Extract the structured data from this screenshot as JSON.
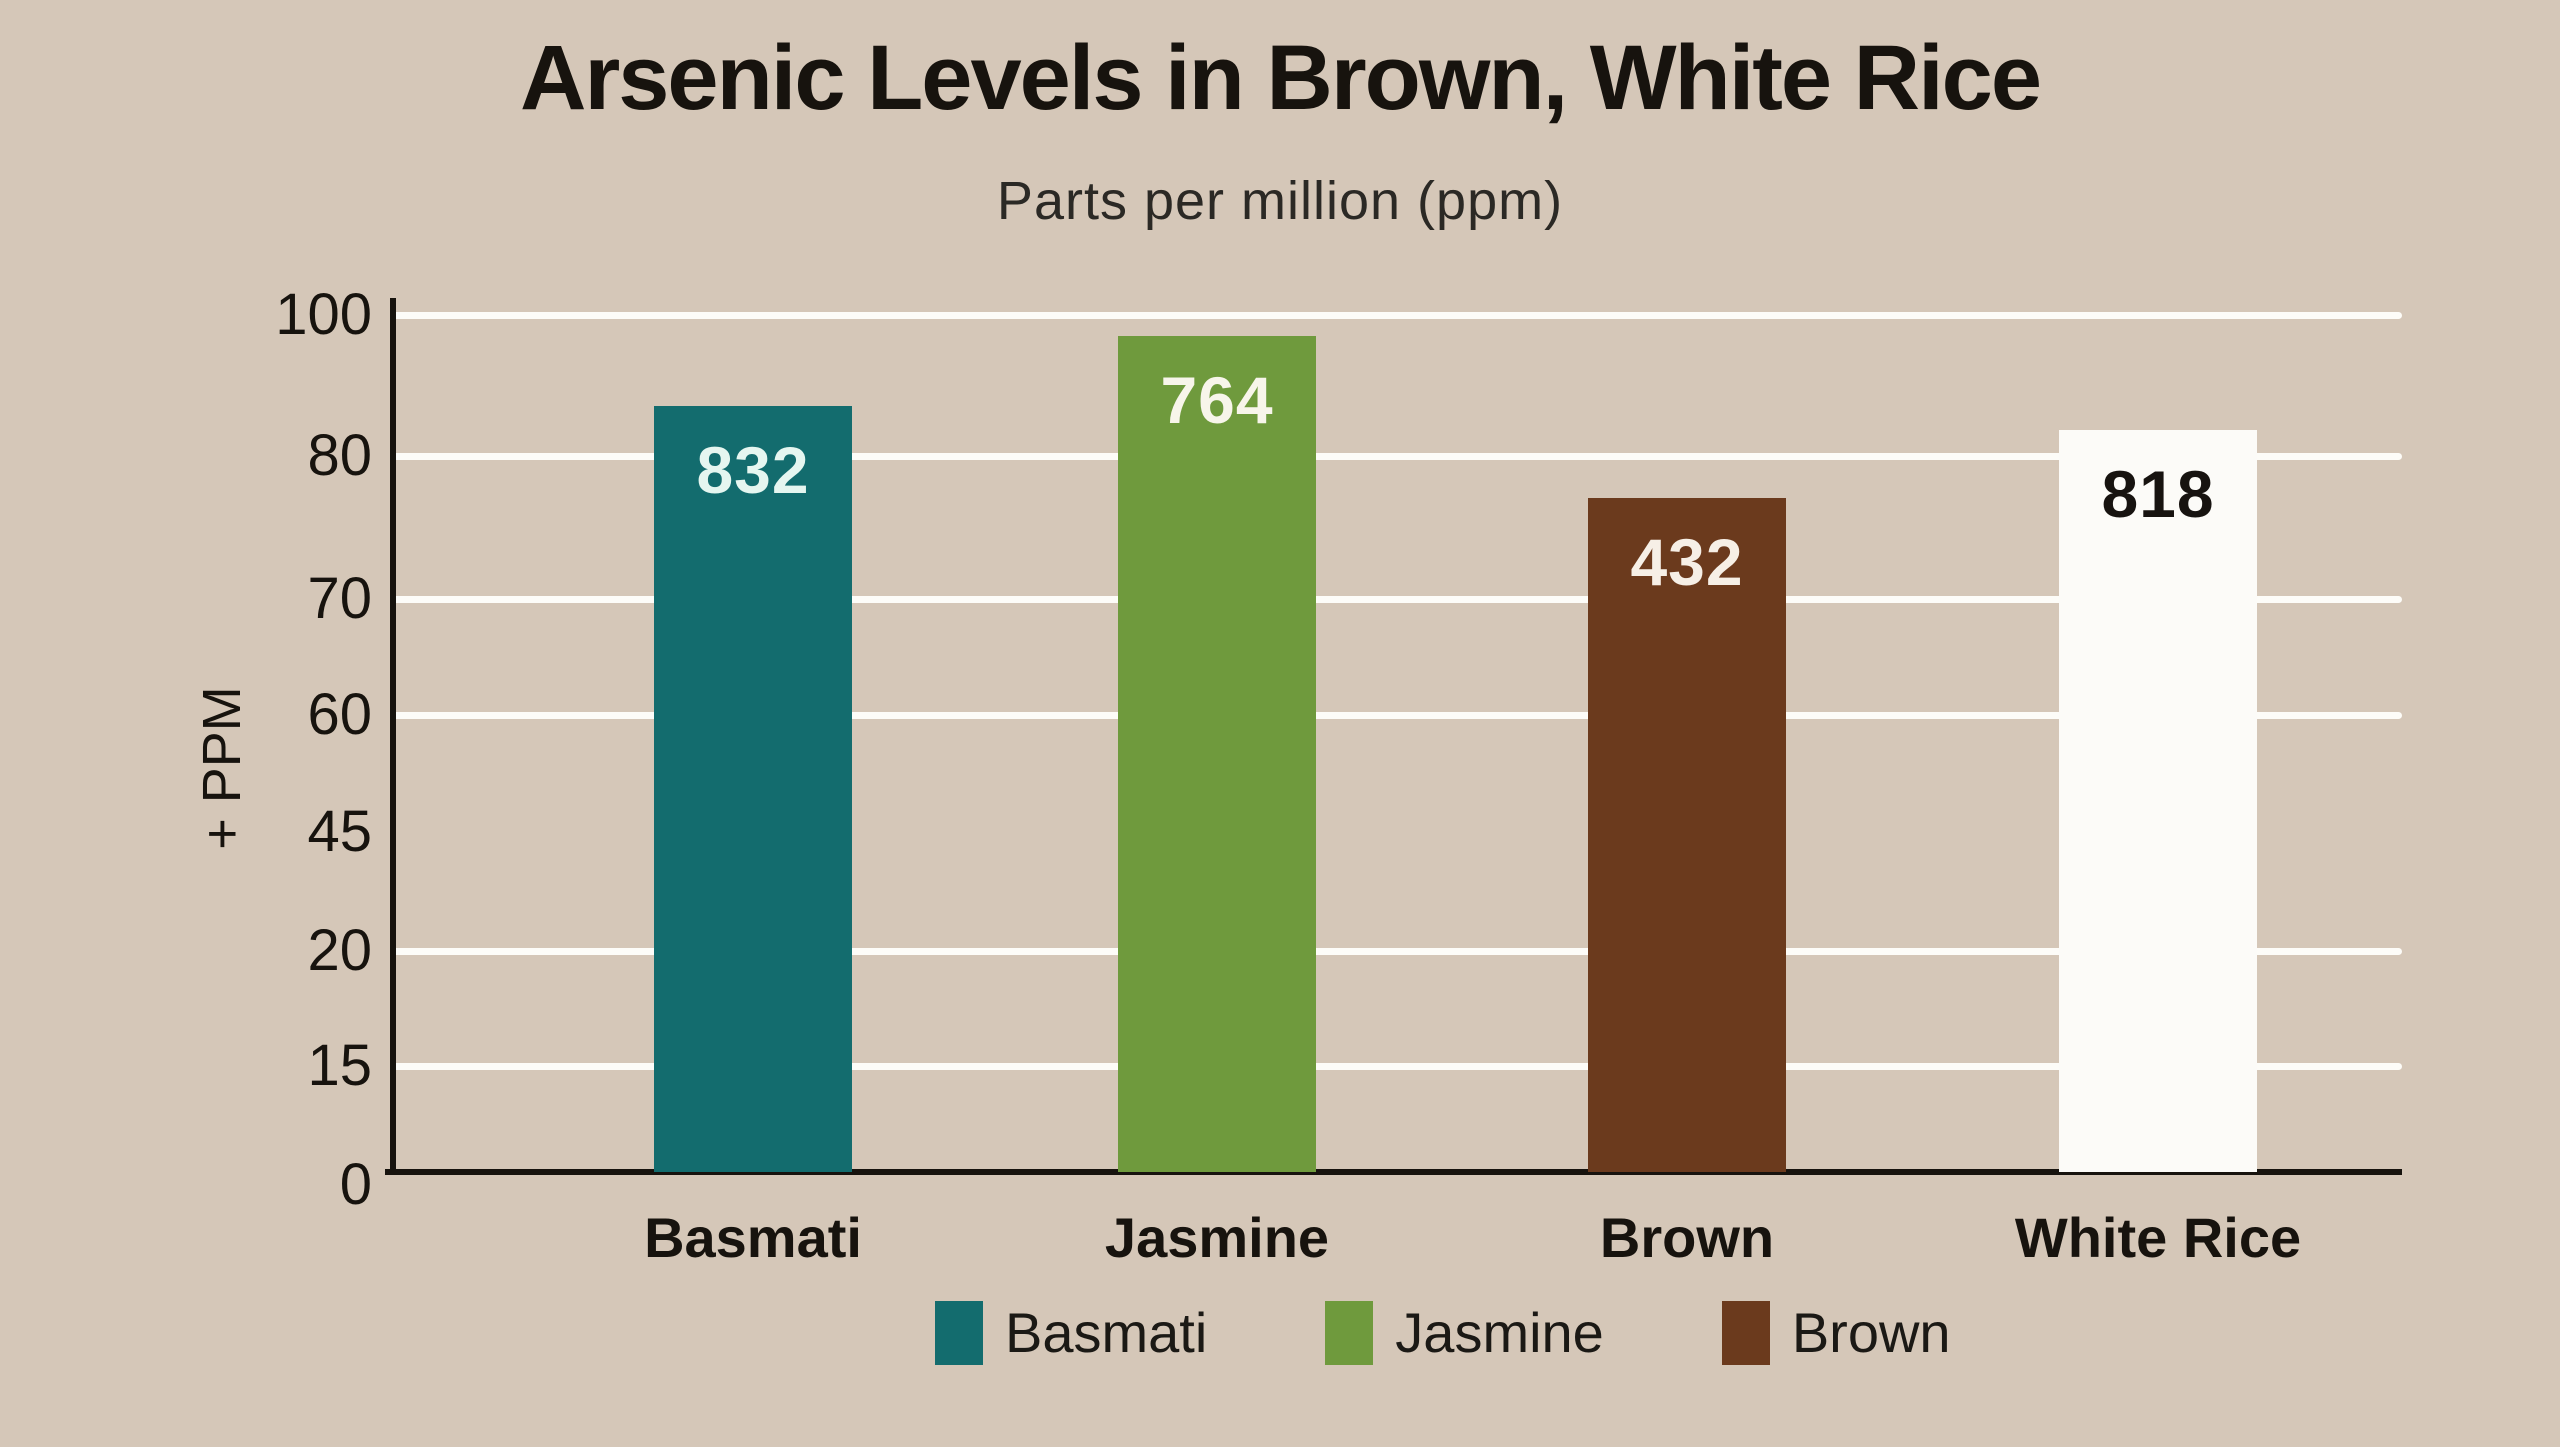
{
  "chart_data": {
    "type": "bar",
    "title": "Arsenic Levels in Brown, White Rice",
    "subtitle": "Parts per million (ppm)",
    "ylabel": "+ PPM",
    "xlabel": "",
    "y_tick_labels": [
      "100",
      "80",
      "70",
      "60",
      "45",
      "20",
      "15",
      "0"
    ],
    "ylim_displayed": [
      0,
      100
    ],
    "grid": "horizontal white gridlines at ticks 100, 80, 70, 60, 20, 15 (none at 45 or 0)",
    "categories": [
      "Basmati",
      "Jasmine",
      "Brown",
      "White Rice"
    ],
    "values": [
      832,
      764,
      432,
      818
    ],
    "bar_colors": [
      "#136c6e",
      "#6f9a3d",
      "#6b3a1d",
      "#fcfbf8"
    ],
    "value_label_colors": [
      "#e5f6f0",
      "#f7f5ea",
      "#f6efe6",
      "#171310"
    ],
    "legend": {
      "position": "bottom",
      "items": [
        {
          "label": "Basmati",
          "color": "#136c6e"
        },
        {
          "label": "Jasmine",
          "color": "#6f9a3d"
        },
        {
          "label": "Brown",
          "color": "#6b3a1d"
        }
      ]
    },
    "colors": {
      "background": "#d5c7b8",
      "gridline": "#fdfcf8",
      "axis_line": "#17130e",
      "text": "#17130e",
      "subtitle_text": "#2b2925"
    }
  }
}
